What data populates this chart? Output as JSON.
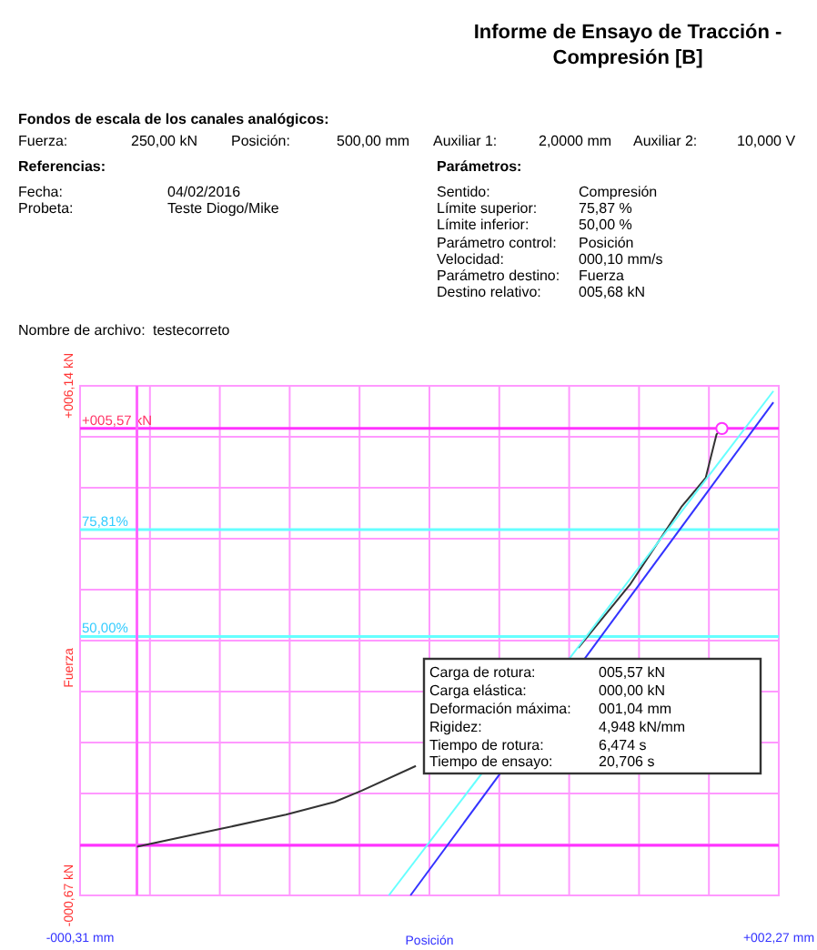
{
  "chart_data": {
    "type": "line",
    "title": "Informe de Ensayo de Tracción - Compresión [B]",
    "xlabel": "Posición",
    "ylabel": "Fuerza",
    "xlim": [
      -0.31,
      2.27
    ],
    "ylim": [
      -0.67,
      6.14
    ],
    "xticks": [
      {
        "value": -0.31,
        "label": "-000,31 mm"
      },
      {
        "value": -0.052,
        "label": null
      },
      {
        "value": 0.206,
        "label": null
      },
      {
        "value": 0.464,
        "label": null
      },
      {
        "value": 0.722,
        "label": null
      },
      {
        "value": 0.98,
        "label": null
      },
      {
        "value": 1.238,
        "label": null
      },
      {
        "value": 1.496,
        "label": null
      },
      {
        "value": 1.754,
        "label": null
      },
      {
        "value": 2.012,
        "label": null
      },
      {
        "value": 2.27,
        "label": "+002,27 mm"
      }
    ],
    "yticks": [
      {
        "value": -0.67,
        "label": "-000,67 kN"
      },
      {
        "value": 0.011,
        "label": null
      },
      {
        "value": 0.692,
        "label": null
      },
      {
        "value": 1.373,
        "label": null
      },
      {
        "value": 2.054,
        "label": null
      },
      {
        "value": 2.735,
        "label": null
      },
      {
        "value": 3.416,
        "label": null
      },
      {
        "value": 4.097,
        "label": null
      },
      {
        "value": 4.778,
        "label": null
      },
      {
        "value": 5.459,
        "label": null
      },
      {
        "value": 6.14,
        "label": "+006,14 kN"
      }
    ],
    "grid": true,
    "ref_lines": [
      {
        "axis": "y",
        "value": 5.57,
        "label": "+005,57 kN",
        "color": "#ff33ff"
      },
      {
        "axis": "y",
        "value": 0,
        "label": null,
        "color": "#ff33ff"
      },
      {
        "axis": "y",
        "value": 4.22,
        "color": "#66ffff"
      },
      {
        "axis": "y",
        "value": 2.79,
        "color": "#66ffff"
      },
      {
        "axis": "x",
        "value": -0.1,
        "label": null,
        "color": "#ff66ff"
      }
    ],
    "series": [
      {
        "type": "line",
        "color": "#333333",
        "x": [
          -0.1,
          0.21,
          0.45,
          0.63,
          0.73,
          0.93,
          null,
          1.53,
          1.72,
          1.85,
          1.91,
          2.0,
          2.04,
          2.06
        ],
        "values": [
          -0.02,
          0.22,
          0.41,
          0.58,
          0.73,
          1.06,
          null,
          2.64,
          3.48,
          4.19,
          4.52,
          4.91,
          5.49,
          5.57
        ]
      },
      {
        "type": "line",
        "color": "#66ffff",
        "x": [
          0.83,
          2.25
        ],
        "values": [
          -0.67,
          6.07
        ]
      },
      {
        "type": "line",
        "color": "#3333ff",
        "x": [
          0.91,
          2.25
        ],
        "values": [
          -0.67,
          5.92
        ]
      },
      {
        "type": "scatter",
        "color": "#ff33ff",
        "marker": "circle",
        "x": [
          2.06
        ],
        "values": [
          5.57
        ]
      }
    ],
    "annotations": [
      "Fondos de escala de los canales analógicos:",
      "Fuerza:",
      "250,00 kN",
      "Posición:",
      "500,00 mm",
      "Auxiliar 1:",
      "2,0000 mm",
      "Auxiliar 2:",
      "10,000 V",
      "Referencias:",
      "Fecha:",
      "04/02/2016",
      "Probeta:",
      "Teste Diogo/Mike",
      "Parámetros:",
      "Sentido:",
      "Compresión",
      "Límite superior:",
      "75,87 %",
      "Límite inferior:",
      "50,00 %",
      "Parámetro control:",
      "Posición",
      "Velocidad:",
      "000,10 mm/s",
      "Parámetro destino:",
      "Fuerza",
      "Destino relativo:",
      "005,68 kN",
      "Nombre de archivo:",
      "testecorreto",
      "Carga de rotura:",
      "005,57 kN",
      "Carga elástica:",
      "000,00 kN",
      "Deformación máxima:",
      "001,04 mm",
      "Rigidez:",
      "4,948 kN/mm",
      "Tiempo de rotura:",
      "6,474 s",
      "Tiempo de ensayo:",
      "20,706 s",
      {
        "text": "75,81%",
        "x": -0.31,
        "y": 4.22
      },
      {
        "text": "50,00%",
        "x": -0.31,
        "y": 2.79
      }
    ]
  }
}
